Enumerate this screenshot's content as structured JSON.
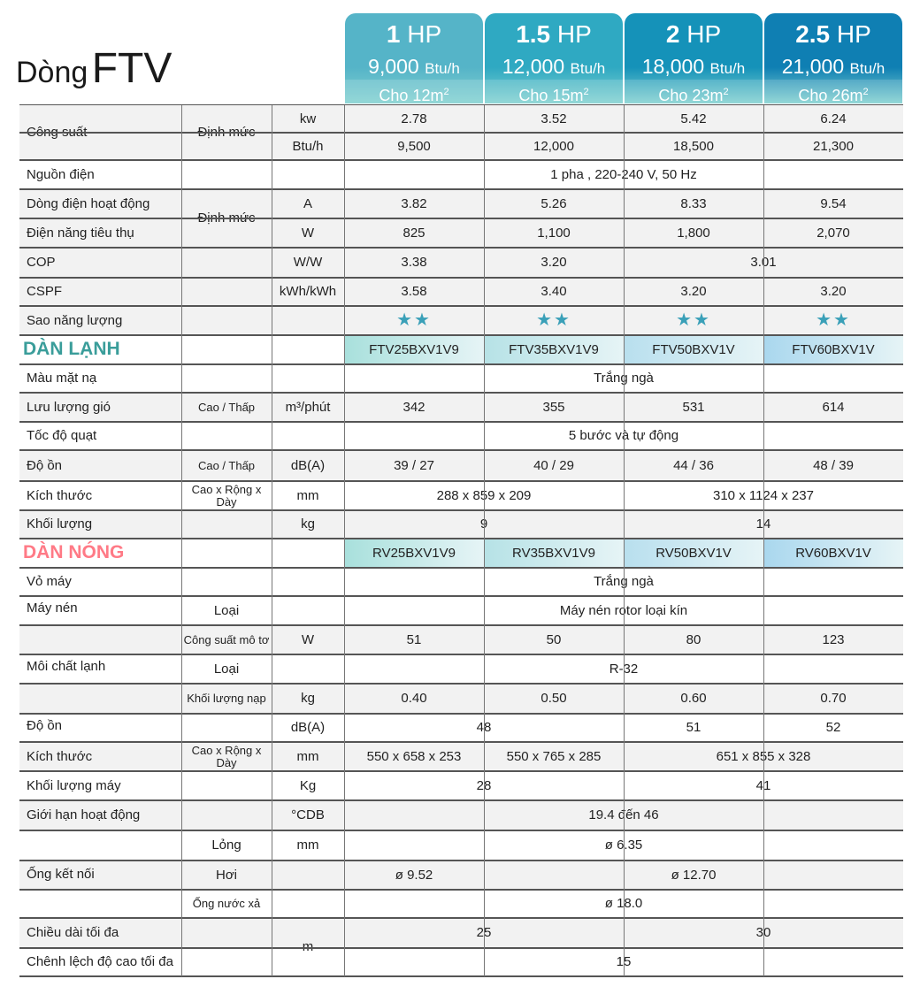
{
  "title": {
    "prefix": "Dòng",
    "model": "FTV"
  },
  "headers": [
    {
      "hp": "1",
      "unit": "HP",
      "btu": "9,000",
      "btu_unit": "Btu/h",
      "area": "Cho 12m",
      "sup": "2"
    },
    {
      "hp": "1.5",
      "unit": "HP",
      "btu": "12,000",
      "btu_unit": "Btu/h",
      "area": "Cho 15m",
      "sup": "2"
    },
    {
      "hp": "2",
      "unit": "HP",
      "btu": "18,000",
      "btu_unit": "Btu/h",
      "area": "Cho 23m",
      "sup": "2"
    },
    {
      "hp": "2.5",
      "unit": "HP",
      "btu": "21,000",
      "btu_unit": "Btu/h",
      "area": "Cho 26m",
      "sup": "2"
    }
  ],
  "colors": {
    "header_1": "#55b4c8",
    "header_2": "#2fa9c2",
    "header_3": "#1592b9",
    "header_4": "#0f7fb3",
    "section_lanh": "#3a9d9a",
    "section_nong": "#ff7a86",
    "star": "#3aa0b8",
    "row_band": "#f2f2f2"
  },
  "rows": [
    {
      "name": "cong-suat-kw",
      "bg": "band",
      "cells": [
        {
          "c": 0,
          "s": 2,
          "r": 2,
          "t": "Công suất",
          "align": "left"
        },
        {
          "c": 2,
          "s": 1,
          "r": 2,
          "t": "Định mức"
        },
        {
          "c": 3,
          "s": 1,
          "t": "kw"
        },
        {
          "c": 4,
          "s": 1,
          "t": "2.78"
        },
        {
          "c": 5,
          "s": 1,
          "t": "3.52"
        },
        {
          "c": 6,
          "s": 1,
          "t": "5.42"
        },
        {
          "c": 7,
          "s": 1,
          "t": "6.24"
        }
      ]
    },
    {
      "name": "cong-suat-btu",
      "bg": "band",
      "cells": [
        {
          "c": 3,
          "s": 1,
          "t": "Btu/h"
        },
        {
          "c": 4,
          "s": 1,
          "t": "9,500"
        },
        {
          "c": 5,
          "s": 1,
          "t": "12,000"
        },
        {
          "c": 6,
          "s": 1,
          "t": "18,500"
        },
        {
          "c": 7,
          "s": 1,
          "t": "21,300"
        }
      ]
    },
    {
      "name": "nguon-dien",
      "cells": [
        {
          "c": 0,
          "s": 4,
          "t": "Nguồn điện",
          "align": "left"
        },
        {
          "c": 4,
          "s": 4,
          "t": "1 pha , 220-240  V, 50 Hz"
        }
      ]
    },
    {
      "name": "dong-dien",
      "bg": "band",
      "cells": [
        {
          "c": 0,
          "s": 1,
          "t": "Dòng điện hoạt động",
          "align": "left"
        },
        {
          "c": 2,
          "s": 1,
          "r": 2,
          "t": "Định mức"
        },
        {
          "c": 3,
          "s": 1,
          "t": "A"
        },
        {
          "c": 4,
          "s": 1,
          "t": "3.82"
        },
        {
          "c": 5,
          "s": 1,
          "t": "5.26"
        },
        {
          "c": 6,
          "s": 1,
          "t": "8.33"
        },
        {
          "c": 7,
          "s": 1,
          "t": "9.54"
        }
      ]
    },
    {
      "name": "dien-nang",
      "bg": "band",
      "cells": [
        {
          "c": 0,
          "s": 1,
          "t": "Điện năng tiêu thụ",
          "align": "left"
        },
        {
          "c": 3,
          "s": 1,
          "t": "W"
        },
        {
          "c": 4,
          "s": 1,
          "t": "825"
        },
        {
          "c": 5,
          "s": 1,
          "t": "1,100"
        },
        {
          "c": 6,
          "s": 1,
          "t": "1,800"
        },
        {
          "c": 7,
          "s": 1,
          "t": "2,070"
        }
      ]
    },
    {
      "name": "cop",
      "bg": "band",
      "cells": [
        {
          "c": 0,
          "s": 3,
          "t": "COP",
          "align": "left"
        },
        {
          "c": 3,
          "s": 1,
          "t": "W/W"
        },
        {
          "c": 4,
          "s": 1,
          "t": "3.38"
        },
        {
          "c": 5,
          "s": 1,
          "t": "3.20"
        },
        {
          "c": 6,
          "s": 2,
          "t": "3.01"
        }
      ]
    },
    {
      "name": "cspf",
      "bg": "band",
      "cells": [
        {
          "c": 0,
          "s": 3,
          "t": "CSPF",
          "align": "left"
        },
        {
          "c": 3,
          "s": 1,
          "t": "kWh/kWh"
        },
        {
          "c": 4,
          "s": 1,
          "t": "3.58"
        },
        {
          "c": 5,
          "s": 1,
          "t": "3.40"
        },
        {
          "c": 6,
          "s": 1,
          "t": "3.20"
        },
        {
          "c": 7,
          "s": 1,
          "t": "3.20"
        }
      ]
    },
    {
      "name": "sao-nang-luong",
      "bg": "band",
      "cells": [
        {
          "c": 0,
          "s": 4,
          "t": "Sao năng lượng",
          "align": "left"
        },
        {
          "c": 4,
          "s": 1,
          "t": "★★",
          "star": true
        },
        {
          "c": 5,
          "s": 1,
          "t": "★★",
          "star": true
        },
        {
          "c": 6,
          "s": 1,
          "t": "★★",
          "star": true
        },
        {
          "c": 7,
          "s": 1,
          "t": "★★",
          "star": true
        }
      ]
    },
    {
      "name": "dan-lanh",
      "cells": [
        {
          "c": 0,
          "s": 4,
          "t": "DÀN LẠNH",
          "section": "lanh"
        },
        {
          "c": 4,
          "s": 1,
          "t": "FTV25BXV1V9",
          "model": 1
        },
        {
          "c": 5,
          "s": 1,
          "t": "FTV35BXV1V9",
          "model": 2
        },
        {
          "c": 6,
          "s": 1,
          "t": "FTV50BXV1V",
          "model": 3
        },
        {
          "c": 7,
          "s": 1,
          "t": "FTV60BXV1V",
          "model": 4
        }
      ]
    },
    {
      "name": "mau-mat-na",
      "cells": [
        {
          "c": 0,
          "s": 4,
          "t": "Màu mặt nạ",
          "align": "left"
        },
        {
          "c": 4,
          "s": 4,
          "t": "Trắng ngà"
        }
      ]
    },
    {
      "name": "luu-luong-gio",
      "bg": "band",
      "cells": [
        {
          "c": 0,
          "s": 1,
          "t": "Lưu lượng gió",
          "align": "left"
        },
        {
          "c": 2,
          "s": 1,
          "t": "Cao / Thấp",
          "small": true
        },
        {
          "c": 3,
          "s": 1,
          "t": "m³/phút"
        },
        {
          "c": 4,
          "s": 1,
          "t": "342"
        },
        {
          "c": 5,
          "s": 1,
          "t": "355"
        },
        {
          "c": 6,
          "s": 1,
          "t": "531"
        },
        {
          "c": 7,
          "s": 1,
          "t": "614"
        }
      ]
    },
    {
      "name": "toc-do-quat",
      "cells": [
        {
          "c": 0,
          "s": 4,
          "t": "Tốc độ quạt",
          "align": "left"
        },
        {
          "c": 4,
          "s": 4,
          "t": "5 bước và tự động"
        }
      ]
    },
    {
      "name": "do-on-lanh",
      "bg": "band",
      "cells": [
        {
          "c": 0,
          "s": 1,
          "t": "Độ ồn",
          "align": "left"
        },
        {
          "c": 2,
          "s": 1,
          "t": "Cao / Thấp",
          "small": true
        },
        {
          "c": 3,
          "s": 1,
          "t": "dB(A)"
        },
        {
          "c": 4,
          "s": 1,
          "t": "39 / 27"
        },
        {
          "c": 5,
          "s": 1,
          "t": "40 / 29"
        },
        {
          "c": 6,
          "s": 1,
          "t": "44 / 36"
        },
        {
          "c": 7,
          "s": 1,
          "t": "48 / 39"
        }
      ]
    },
    {
      "name": "kich-thuoc-lanh",
      "cells": [
        {
          "c": 0,
          "s": 1,
          "t": "Kích thước",
          "align": "left"
        },
        {
          "c": 2,
          "s": 1,
          "t": "Cao x Rộng x Dày",
          "small": true
        },
        {
          "c": 3,
          "s": 1,
          "t": "mm"
        },
        {
          "c": 4,
          "s": 2,
          "t": "288 x 859 x 209"
        },
        {
          "c": 6,
          "s": 2,
          "t": "310 x 1124 x 237"
        }
      ]
    },
    {
      "name": "khoi-luong-lanh",
      "bg": "band",
      "cells": [
        {
          "c": 0,
          "s": 3,
          "t": "Khối lượng",
          "align": "left"
        },
        {
          "c": 3,
          "s": 1,
          "t": "kg"
        },
        {
          "c": 4,
          "s": 2,
          "t": "9"
        },
        {
          "c": 6,
          "s": 2,
          "t": "14"
        }
      ]
    },
    {
      "name": "dan-nong",
      "cells": [
        {
          "c": 0,
          "s": 4,
          "t": "DÀN NÓNG",
          "section": "nong"
        },
        {
          "c": 4,
          "s": 1,
          "t": "RV25BXV1V9",
          "model": 1
        },
        {
          "c": 5,
          "s": 1,
          "t": "RV35BXV1V9",
          "model": 2
        },
        {
          "c": 6,
          "s": 1,
          "t": "RV50BXV1V",
          "model": 3
        },
        {
          "c": 7,
          "s": 1,
          "t": "RV60BXV1V",
          "model": 4
        }
      ]
    },
    {
      "name": "vo-may",
      "cells": [
        {
          "c": 0,
          "s": 4,
          "t": "Vỏ máy",
          "align": "left"
        },
        {
          "c": 4,
          "s": 4,
          "t": "Trắng ngà"
        }
      ]
    },
    {
      "name": "may-nen-loai",
      "cells": [
        {
          "c": 0,
          "s": 1,
          "r": 2,
          "t": "Máy nén",
          "align": "left",
          "v": "top"
        },
        {
          "c": 2,
          "s": 1,
          "t": "Loại"
        },
        {
          "c": 4,
          "s": 4,
          "t": "Máy nén rotor loại kín"
        }
      ]
    },
    {
      "name": "may-nen-cong-suat",
      "bg": "band",
      "cells": [
        {
          "c": 2,
          "s": 1,
          "t": "Công suất mô tơ",
          "small": true
        },
        {
          "c": 3,
          "s": 1,
          "t": "W"
        },
        {
          "c": 4,
          "s": 1,
          "t": "51"
        },
        {
          "c": 5,
          "s": 1,
          "t": "50"
        },
        {
          "c": 6,
          "s": 1,
          "t": "80"
        },
        {
          "c": 7,
          "s": 1,
          "t": "123"
        }
      ]
    },
    {
      "name": "moi-chat-loai",
      "cells": [
        {
          "c": 0,
          "s": 1,
          "r": 2,
          "t": "Môi chất lạnh",
          "align": "left",
          "v": "top"
        },
        {
          "c": 2,
          "s": 1,
          "t": "Loại"
        },
        {
          "c": 4,
          "s": 4,
          "t": "R-32"
        }
      ]
    },
    {
      "name": "moi-chat-khoi-luong",
      "bg": "band",
      "cells": [
        {
          "c": 2,
          "s": 1,
          "t": "Khối lượng nạp",
          "small": true
        },
        {
          "c": 3,
          "s": 1,
          "t": "kg"
        },
        {
          "c": 4,
          "s": 1,
          "t": "0.40"
        },
        {
          "c": 5,
          "s": 1,
          "t": "0.50"
        },
        {
          "c": 6,
          "s": 1,
          "t": "0.60"
        },
        {
          "c": 7,
          "s": 1,
          "t": "0.70"
        }
      ]
    },
    {
      "name": "do-on-nong",
      "cells": [
        {
          "c": 0,
          "s": 1,
          "t": "Độ ồn",
          "align": "left",
          "v": "top"
        },
        {
          "c": 3,
          "s": 1,
          "t": "dB(A)"
        },
        {
          "c": 4,
          "s": 2,
          "t": "48"
        },
        {
          "c": 6,
          "s": 1,
          "t": "51"
        },
        {
          "c": 7,
          "s": 1,
          "t": "52"
        }
      ]
    },
    {
      "name": "kich-thuoc-nong",
      "bg": "band",
      "cells": [
        {
          "c": 0,
          "s": 1,
          "t": "Kích thước",
          "align": "left"
        },
        {
          "c": 2,
          "s": 1,
          "t": "Cao x Rộng x Dày",
          "small": true
        },
        {
          "c": 3,
          "s": 1,
          "t": "mm"
        },
        {
          "c": 4,
          "s": 1,
          "t": "550 x 658 x 253"
        },
        {
          "c": 5,
          "s": 1,
          "t": "550 x 765 x 285"
        },
        {
          "c": 6,
          "s": 2,
          "t": "651 x 855 x 328"
        }
      ]
    },
    {
      "name": "khoi-luong-may",
      "cells": [
        {
          "c": 0,
          "s": 3,
          "t": "Khối lượng máy",
          "align": "left"
        },
        {
          "c": 3,
          "s": 1,
          "t": "Kg"
        },
        {
          "c": 4,
          "s": 2,
          "t": "28"
        },
        {
          "c": 6,
          "s": 2,
          "t": "41"
        }
      ]
    },
    {
      "name": "gioi-han",
      "bg": "band",
      "cells": [
        {
          "c": 0,
          "s": 3,
          "t": "Giới hạn hoạt động",
          "align": "left"
        },
        {
          "c": 3,
          "s": 1,
          "t": "°CDB"
        },
        {
          "c": 4,
          "s": 4,
          "t": "19.4 đến 46"
        }
      ]
    },
    {
      "name": "ong-long",
      "cells": [
        {
          "c": 0,
          "s": 1,
          "r": 3,
          "t": "Ống kết nối",
          "align": "left"
        },
        {
          "c": 2,
          "s": 1,
          "t": "Lỏng"
        },
        {
          "c": 3,
          "s": 1,
          "t": "mm"
        },
        {
          "c": 4,
          "s": 4,
          "t": "ø 6.35"
        }
      ]
    },
    {
      "name": "ong-hoi",
      "bg": "band",
      "cells": [
        {
          "c": 2,
          "s": 1,
          "t": "Hơi"
        },
        {
          "c": 4,
          "s": 1,
          "t": "ø 9.52"
        },
        {
          "c": 5,
          "s": 3,
          "t": "ø 12.70"
        }
      ]
    },
    {
      "name": "ong-nuoc-xa",
      "cells": [
        {
          "c": 2,
          "s": 1,
          "t": "Ống nước xả",
          "small": true
        },
        {
          "c": 4,
          "s": 4,
          "t": "ø 18.0"
        }
      ]
    },
    {
      "name": "chieu-dai",
      "bg": "band",
      "cells": [
        {
          "c": 0,
          "s": 1,
          "t": "Chiều dài tối đa",
          "align": "left"
        },
        {
          "c": 3,
          "s": 1,
          "r": 2,
          "t": "m"
        },
        {
          "c": 4,
          "s": 2,
          "t": "25"
        },
        {
          "c": 6,
          "s": 2,
          "t": "30"
        }
      ]
    },
    {
      "name": "chenh-lech",
      "cells": [
        {
          "c": 0,
          "s": 1,
          "t": "Chênh lệch độ cao tối đa",
          "align": "left"
        },
        {
          "c": 4,
          "s": 4,
          "t": "15"
        }
      ]
    }
  ]
}
